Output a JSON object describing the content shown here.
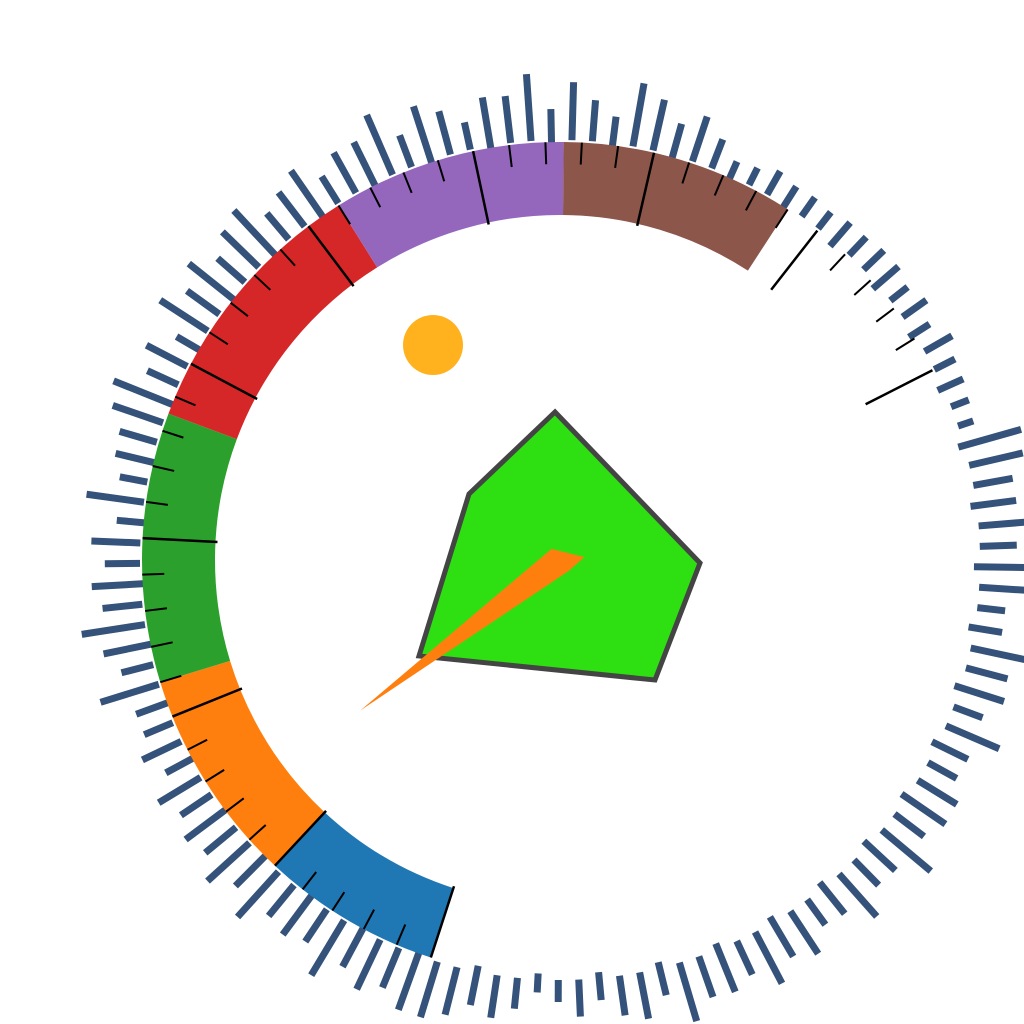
{
  "chart_data": {
    "type": "gauge",
    "title": "",
    "colors": {
      "radial_bars": "#34527a",
      "ticks": "#000000",
      "needle": "#ff7f0e",
      "pentagon_fill": "#2ee012",
      "pentagon_stroke": "#444444",
      "dot": "#ffb21e"
    },
    "bands": [
      {
        "color": "#1f77b4",
        "start": 0,
        "end": 10
      },
      {
        "color": "#ff7f0e",
        "start": 10,
        "end": 22
      },
      {
        "color": "#2ca02c",
        "start": 22,
        "end": 37
      },
      {
        "color": "#d62728",
        "start": 37,
        "end": 52
      },
      {
        "color": "#9467bd",
        "start": 52,
        "end": 65
      },
      {
        "color": "#8c564b",
        "start": 65,
        "end": 78
      }
    ],
    "scale": {
      "min": 0,
      "max": 90,
      "minor_step": 2,
      "major_step": 10
    },
    "needle_value": 14,
    "radial_bars": [
      0.45,
      0.85,
      0.38,
      0.7,
      0.9,
      0.5,
      0.75,
      0.42,
      0.65,
      0.35,
      0.8,
      0.3,
      0.55,
      0.48,
      0.72,
      0.95,
      0.4,
      0.6,
      0.33,
      0.78,
      0.5,
      0.85,
      0.44,
      0.68,
      0.9,
      0.4,
      0.55,
      0.82,
      0.36,
      0.6,
      0.7,
      0.92,
      0.4,
      0.88,
      0.58,
      0.3,
      0.75,
      0.62,
      0.95,
      0.45,
      0.8,
      0.52,
      0.38,
      0.9,
      0.7,
      0.48,
      0.62,
      0.35,
      0.2,
      0.15,
      0.28,
      0.3,
      0.22,
      0.18,
      0.35,
      0.25,
      0.3,
      0.4,
      0.2,
      0.32,
      0.24,
      0.36,
      0.22,
      0.3,
      0.15,
      0.1,
      0.92,
      0.75,
      0.5,
      0.6,
      0.82,
      0.45,
      0.9,
      0.7,
      0.3,
      0.4,
      0.85,
      0.55,
      0.7,
      0.35,
      0.8,
      0.5,
      0.38,
      0.6,
      0.72,
      0.45,
      0.9,
      0.55,
      0.42,
      0.78,
      0.5,
      0.35,
      0.68,
      0.6,
      0.8,
      0.45,
      0.7,
      0.55,
      0.85,
      0.4,
      0.62,
      0.5,
      0.3,
      0.45,
      0.2,
      0.15,
      0.35,
      0.55,
      0.5,
      0.65,
      0.8,
      0.9,
      0.55,
      0.75,
      0.62,
      0.9,
      0.48,
      0.7,
      0.5,
      0.85,
      0.6,
      0.78,
      0.5,
      0.72,
      0.45,
      0.65,
      0.4,
      0.55,
      0.35
    ],
    "pentagon": [
      [
        555,
        412
      ],
      [
        700,
        563
      ],
      [
        655,
        680
      ],
      [
        419,
        656
      ],
      [
        469,
        494
      ]
    ],
    "dot": {
      "cx": 433,
      "cy": 345,
      "r": 30
    }
  }
}
